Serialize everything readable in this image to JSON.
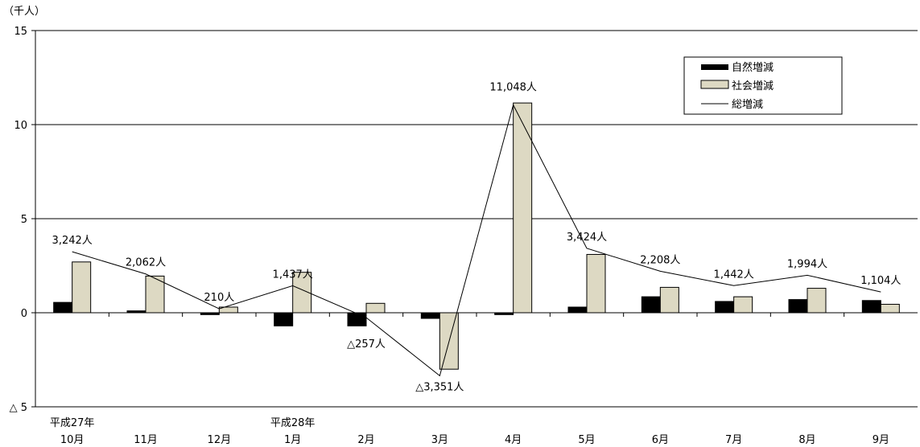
{
  "chart_data": {
    "type": "bar",
    "unit_label": "（千人）",
    "categories": [
      "10月",
      "11月",
      "12月",
      "1月",
      "2月",
      "3月",
      "4月",
      "5月",
      "6月",
      "7月",
      "8月",
      "9月"
    ],
    "year_labels": [
      {
        "index": 0,
        "label": "平成27年"
      },
      {
        "index": 3,
        "label": "平成28年"
      }
    ],
    "ylim": [
      -5,
      15
    ],
    "y_ticks": [
      {
        "value": 15,
        "label": "15"
      },
      {
        "value": 10,
        "label": "10"
      },
      {
        "value": 5,
        "label": "5"
      },
      {
        "value": 0,
        "label": "0"
      },
      {
        "value": -5,
        "label": "△ 5"
      }
    ],
    "grid": true,
    "legend_position": "top-right",
    "series": [
      {
        "name": "自然増減",
        "kind": "bar",
        "color": "#000000",
        "values": [
          0.55,
          0.1,
          -0.1,
          -0.7,
          -0.7,
          -0.3,
          -0.1,
          0.3,
          0.85,
          0.6,
          0.7,
          0.65
        ]
      },
      {
        "name": "社会増減",
        "kind": "bar",
        "color": "#ddd9c3",
        "values": [
          2.7,
          1.95,
          0.3,
          2.15,
          0.5,
          -3.0,
          11.15,
          3.1,
          1.35,
          0.85,
          1.3,
          0.45
        ]
      },
      {
        "name": "総増減",
        "kind": "line",
        "color": "#000000",
        "values": [
          3.242,
          2.062,
          0.21,
          1.437,
          -0.257,
          -3.351,
          11.048,
          3.424,
          2.208,
          1.442,
          1.994,
          1.104
        ]
      }
    ],
    "data_labels": [
      "3,242人",
      "2,062人",
      "210人",
      "1,437人",
      "△257人",
      "△3,351人",
      "11,048人",
      "3,424人",
      "2,208人",
      "1,442人",
      "1,994人",
      "1,104人"
    ]
  }
}
